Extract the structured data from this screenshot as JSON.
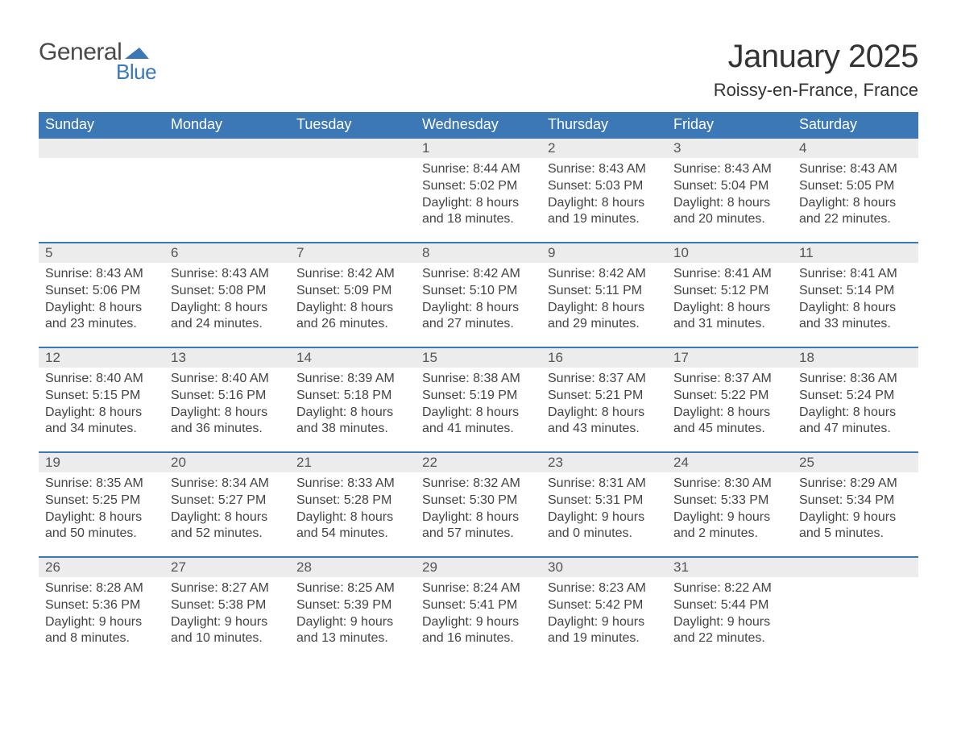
{
  "logo": {
    "general": "General",
    "blue": "Blue"
  },
  "title": "January 2025",
  "subtitle": "Roissy-en-France, France",
  "colors": {
    "header_bg": "#3b78b5",
    "header_text": "#ffffff",
    "daynum_bg": "#ececec",
    "daynum_border": "#3b78b5",
    "body_text": "#444444",
    "daynum_text": "#555555",
    "page_bg": "#ffffff"
  },
  "font": {
    "family": "Arial",
    "title_size": 40,
    "subtitle_size": 22,
    "header_size": 18,
    "body_size": 16
  },
  "weekdays": [
    "Sunday",
    "Monday",
    "Tuesday",
    "Wednesday",
    "Thursday",
    "Friday",
    "Saturday"
  ],
  "weeks": [
    {
      "nums": [
        "",
        "",
        "",
        "1",
        "2",
        "3",
        "4"
      ],
      "cells": [
        {},
        {},
        {},
        {
          "sunrise": "Sunrise: 8:44 AM",
          "sunset": "Sunset: 5:02 PM",
          "d1": "Daylight: 8 hours",
          "d2": "and 18 minutes."
        },
        {
          "sunrise": "Sunrise: 8:43 AM",
          "sunset": "Sunset: 5:03 PM",
          "d1": "Daylight: 8 hours",
          "d2": "and 19 minutes."
        },
        {
          "sunrise": "Sunrise: 8:43 AM",
          "sunset": "Sunset: 5:04 PM",
          "d1": "Daylight: 8 hours",
          "d2": "and 20 minutes."
        },
        {
          "sunrise": "Sunrise: 8:43 AM",
          "sunset": "Sunset: 5:05 PM",
          "d1": "Daylight: 8 hours",
          "d2": "and 22 minutes."
        }
      ]
    },
    {
      "nums": [
        "5",
        "6",
        "7",
        "8",
        "9",
        "10",
        "11"
      ],
      "cells": [
        {
          "sunrise": "Sunrise: 8:43 AM",
          "sunset": "Sunset: 5:06 PM",
          "d1": "Daylight: 8 hours",
          "d2": "and 23 minutes."
        },
        {
          "sunrise": "Sunrise: 8:43 AM",
          "sunset": "Sunset: 5:08 PM",
          "d1": "Daylight: 8 hours",
          "d2": "and 24 minutes."
        },
        {
          "sunrise": "Sunrise: 8:42 AM",
          "sunset": "Sunset: 5:09 PM",
          "d1": "Daylight: 8 hours",
          "d2": "and 26 minutes."
        },
        {
          "sunrise": "Sunrise: 8:42 AM",
          "sunset": "Sunset: 5:10 PM",
          "d1": "Daylight: 8 hours",
          "d2": "and 27 minutes."
        },
        {
          "sunrise": "Sunrise: 8:42 AM",
          "sunset": "Sunset: 5:11 PM",
          "d1": "Daylight: 8 hours",
          "d2": "and 29 minutes."
        },
        {
          "sunrise": "Sunrise: 8:41 AM",
          "sunset": "Sunset: 5:12 PM",
          "d1": "Daylight: 8 hours",
          "d2": "and 31 minutes."
        },
        {
          "sunrise": "Sunrise: 8:41 AM",
          "sunset": "Sunset: 5:14 PM",
          "d1": "Daylight: 8 hours",
          "d2": "and 33 minutes."
        }
      ]
    },
    {
      "nums": [
        "12",
        "13",
        "14",
        "15",
        "16",
        "17",
        "18"
      ],
      "cells": [
        {
          "sunrise": "Sunrise: 8:40 AM",
          "sunset": "Sunset: 5:15 PM",
          "d1": "Daylight: 8 hours",
          "d2": "and 34 minutes."
        },
        {
          "sunrise": "Sunrise: 8:40 AM",
          "sunset": "Sunset: 5:16 PM",
          "d1": "Daylight: 8 hours",
          "d2": "and 36 minutes."
        },
        {
          "sunrise": "Sunrise: 8:39 AM",
          "sunset": "Sunset: 5:18 PM",
          "d1": "Daylight: 8 hours",
          "d2": "and 38 minutes."
        },
        {
          "sunrise": "Sunrise: 8:38 AM",
          "sunset": "Sunset: 5:19 PM",
          "d1": "Daylight: 8 hours",
          "d2": "and 41 minutes."
        },
        {
          "sunrise": "Sunrise: 8:37 AM",
          "sunset": "Sunset: 5:21 PM",
          "d1": "Daylight: 8 hours",
          "d2": "and 43 minutes."
        },
        {
          "sunrise": "Sunrise: 8:37 AM",
          "sunset": "Sunset: 5:22 PM",
          "d1": "Daylight: 8 hours",
          "d2": "and 45 minutes."
        },
        {
          "sunrise": "Sunrise: 8:36 AM",
          "sunset": "Sunset: 5:24 PM",
          "d1": "Daylight: 8 hours",
          "d2": "and 47 minutes."
        }
      ]
    },
    {
      "nums": [
        "19",
        "20",
        "21",
        "22",
        "23",
        "24",
        "25"
      ],
      "cells": [
        {
          "sunrise": "Sunrise: 8:35 AM",
          "sunset": "Sunset: 5:25 PM",
          "d1": "Daylight: 8 hours",
          "d2": "and 50 minutes."
        },
        {
          "sunrise": "Sunrise: 8:34 AM",
          "sunset": "Sunset: 5:27 PM",
          "d1": "Daylight: 8 hours",
          "d2": "and 52 minutes."
        },
        {
          "sunrise": "Sunrise: 8:33 AM",
          "sunset": "Sunset: 5:28 PM",
          "d1": "Daylight: 8 hours",
          "d2": "and 54 minutes."
        },
        {
          "sunrise": "Sunrise: 8:32 AM",
          "sunset": "Sunset: 5:30 PM",
          "d1": "Daylight: 8 hours",
          "d2": "and 57 minutes."
        },
        {
          "sunrise": "Sunrise: 8:31 AM",
          "sunset": "Sunset: 5:31 PM",
          "d1": "Daylight: 9 hours",
          "d2": "and 0 minutes."
        },
        {
          "sunrise": "Sunrise: 8:30 AM",
          "sunset": "Sunset: 5:33 PM",
          "d1": "Daylight: 9 hours",
          "d2": "and 2 minutes."
        },
        {
          "sunrise": "Sunrise: 8:29 AM",
          "sunset": "Sunset: 5:34 PM",
          "d1": "Daylight: 9 hours",
          "d2": "and 5 minutes."
        }
      ]
    },
    {
      "nums": [
        "26",
        "27",
        "28",
        "29",
        "30",
        "31",
        ""
      ],
      "cells": [
        {
          "sunrise": "Sunrise: 8:28 AM",
          "sunset": "Sunset: 5:36 PM",
          "d1": "Daylight: 9 hours",
          "d2": "and 8 minutes."
        },
        {
          "sunrise": "Sunrise: 8:27 AM",
          "sunset": "Sunset: 5:38 PM",
          "d1": "Daylight: 9 hours",
          "d2": "and 10 minutes."
        },
        {
          "sunrise": "Sunrise: 8:25 AM",
          "sunset": "Sunset: 5:39 PM",
          "d1": "Daylight: 9 hours",
          "d2": "and 13 minutes."
        },
        {
          "sunrise": "Sunrise: 8:24 AM",
          "sunset": "Sunset: 5:41 PM",
          "d1": "Daylight: 9 hours",
          "d2": "and 16 minutes."
        },
        {
          "sunrise": "Sunrise: 8:23 AM",
          "sunset": "Sunset: 5:42 PM",
          "d1": "Daylight: 9 hours",
          "d2": "and 19 minutes."
        },
        {
          "sunrise": "Sunrise: 8:22 AM",
          "sunset": "Sunset: 5:44 PM",
          "d1": "Daylight: 9 hours",
          "d2": "and 22 minutes."
        },
        {}
      ]
    }
  ]
}
